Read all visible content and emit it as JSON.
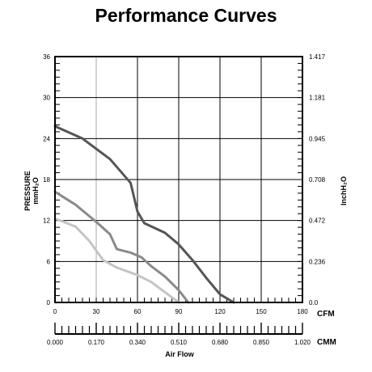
{
  "title": "Performance Curves",
  "chart_data": {
    "type": "line",
    "title": "Performance Curves",
    "xlabel": "Air Flow",
    "x_unit_primary": "CFM",
    "x_unit_secondary": "CMM",
    "ylabel_left_line1": "PRESSURE",
    "ylabel_left_line2": "mmH₂O",
    "ylabel_right": "InchH₂O",
    "xlim": [
      0,
      180
    ],
    "ylim": [
      0,
      36
    ],
    "x_ticks": [
      "0",
      "30",
      "60",
      "90",
      "120",
      "150",
      "180"
    ],
    "x_ticks_secondary": [
      "0.000",
      "0.170",
      "0.340",
      "0.510",
      "0.680",
      "0.850",
      "1.020"
    ],
    "y_ticks_left": [
      "0",
      "6",
      "12",
      "18",
      "24",
      "30",
      "36"
    ],
    "y_ticks_right": [
      "0.0",
      "0.236",
      "0.472",
      "0.708",
      "0.945",
      "1.181",
      "1.417"
    ],
    "grid": true,
    "series": [
      {
        "color": "#555555",
        "points": [
          [
            0,
            25.8
          ],
          [
            20,
            24
          ],
          [
            40,
            21
          ],
          [
            55,
            17.5
          ],
          [
            60,
            13.3
          ],
          [
            65,
            11.6
          ],
          [
            80,
            10.2
          ],
          [
            90,
            8.5
          ],
          [
            100,
            6.2
          ],
          [
            110,
            3.6
          ],
          [
            120,
            1.2
          ],
          [
            130,
            0
          ]
        ]
      },
      {
        "color": "#8a8a8a",
        "points": [
          [
            0,
            16.2
          ],
          [
            15,
            14.3
          ],
          [
            30,
            11.8
          ],
          [
            40,
            10
          ],
          [
            45,
            7.8
          ],
          [
            55,
            7.3
          ],
          [
            63,
            6.6
          ],
          [
            70,
            5.3
          ],
          [
            80,
            3.8
          ],
          [
            90,
            1.8
          ],
          [
            97,
            0
          ]
        ]
      },
      {
        "color": "#c4c4c4",
        "points": [
          [
            0,
            12.3
          ],
          [
            15,
            11.1
          ],
          [
            25,
            9
          ],
          [
            35,
            6.2
          ],
          [
            45,
            5.1
          ],
          [
            60,
            4
          ],
          [
            70,
            3
          ],
          [
            80,
            1.5
          ],
          [
            90,
            0
          ]
        ]
      }
    ]
  }
}
